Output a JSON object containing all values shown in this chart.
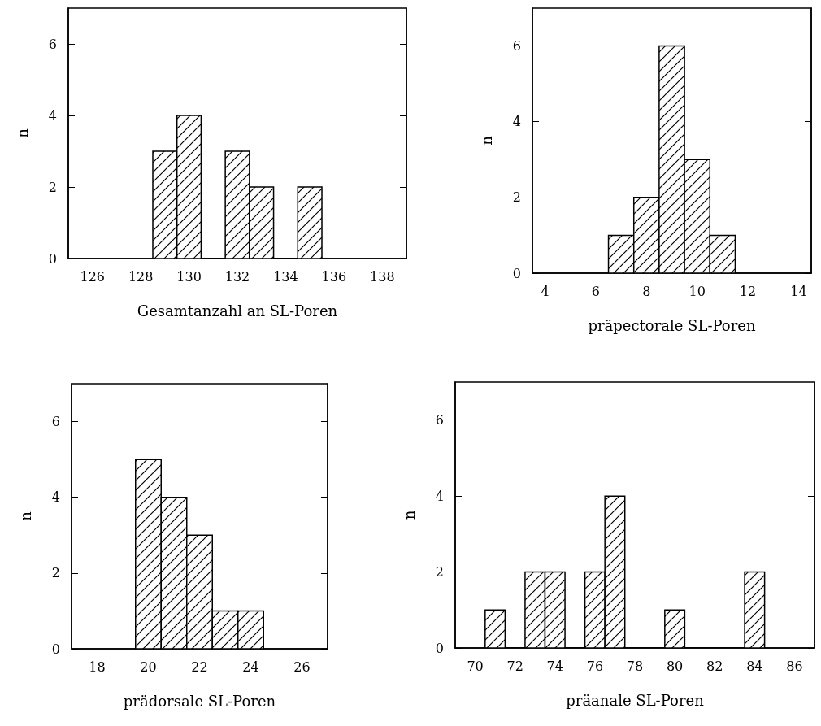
{
  "chart_data": [
    {
      "type": "histogram",
      "xlabel": "Gesamtanzahl an SL-Poren",
      "ylabel": "n",
      "bins": [
        128.5,
        129.5,
        130.5,
        131.5,
        132.5,
        133.5,
        134.5,
        135.5
      ],
      "values": [
        3,
        4,
        0,
        3,
        2,
        0,
        2
      ],
      "xlim": [
        125,
        139
      ],
      "xticks": [
        126,
        128,
        130,
        132,
        134,
        136,
        138
      ],
      "ylim": [
        0,
        7
      ],
      "yticks": [
        0,
        2,
        4,
        6
      ],
      "grid": false
    },
    {
      "type": "histogram",
      "xlabel": "präpectorale SL-Poren",
      "ylabel": "n",
      "bins": [
        6.5,
        7.5,
        8.5,
        9.5,
        10.5,
        11.5
      ],
      "values": [
        1,
        2,
        6,
        3,
        1
      ],
      "xlim": [
        3.5,
        14.5
      ],
      "xticks": [
        4,
        6,
        8,
        10,
        12,
        14
      ],
      "ylim": [
        0,
        7
      ],
      "yticks": [
        0,
        2,
        4,
        6
      ],
      "grid": false
    },
    {
      "type": "histogram",
      "xlabel": "prädorsale SL-Poren",
      "ylabel": "n",
      "bins": [
        19.5,
        20.5,
        21.5,
        22.5,
        23.5,
        24.5
      ],
      "values": [
        5,
        4,
        3,
        1,
        1
      ],
      "xlim": [
        17,
        27
      ],
      "xticks": [
        18,
        20,
        22,
        24,
        26
      ],
      "ylim": [
        0,
        7
      ],
      "yticks": [
        0,
        2,
        4,
        6
      ],
      "grid": false
    },
    {
      "type": "histogram",
      "xlabel": "präanale SL-Poren",
      "ylabel": "n",
      "bins": [
        70.5,
        71.5,
        72.5,
        73.5,
        74.5,
        75.5,
        76.5,
        77.5,
        78.5,
        79.5,
        80.5,
        81.5,
        82.5,
        83.5,
        84.5
      ],
      "values": [
        1,
        0,
        2,
        2,
        0,
        2,
        4,
        0,
        0,
        1,
        0,
        0,
        0,
        2
      ],
      "xlim": [
        69,
        87
      ],
      "xticks": [
        70,
        72,
        74,
        76,
        78,
        80,
        82,
        84,
        86
      ],
      "ylim": [
        0,
        7
      ],
      "yticks": [
        0,
        2,
        4,
        6
      ],
      "grid": false
    }
  ]
}
